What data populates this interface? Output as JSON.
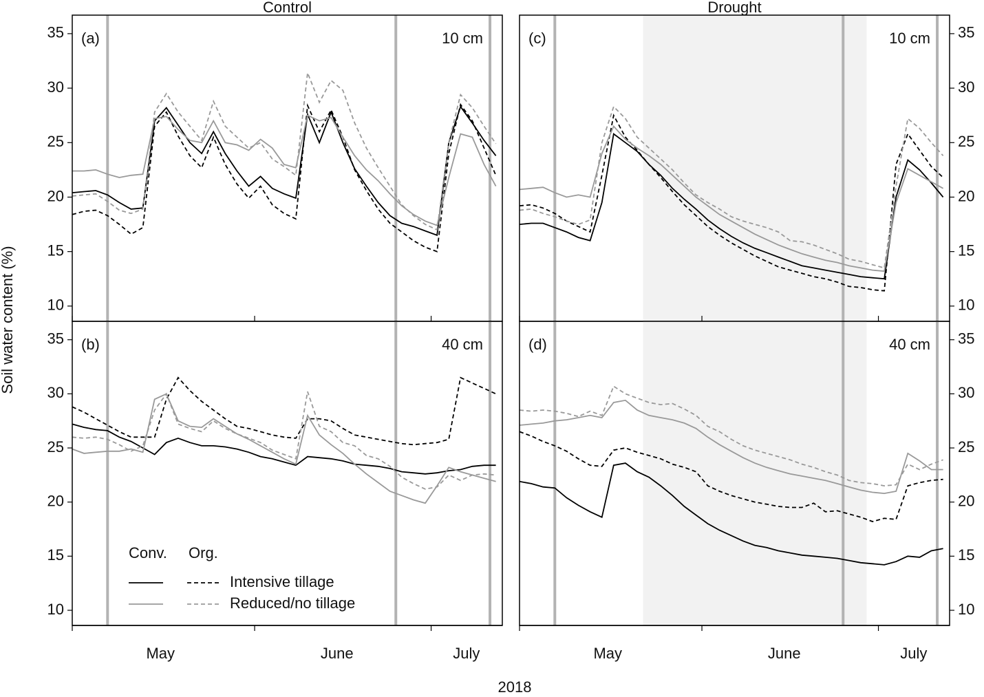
{
  "figure": {
    "y_label": "Soil water content (%)",
    "x_label": "2018",
    "legend": {
      "corner": "bottom-left",
      "headers": [
        "Conv.",
        "Org."
      ],
      "rows": [
        "Intensive tillage",
        "Reduced/no tillage"
      ],
      "colors": [
        "#000000",
        "#999999"
      ]
    }
  },
  "chart_data": [
    {
      "type": "line",
      "title": "Control",
      "label": "(a)",
      "depth": "10 cm",
      "y_axis_side": "left",
      "xlim": [
        0,
        73.1
      ],
      "ylim": [
        8.6,
        36.7
      ],
      "yticks": [
        10,
        15,
        20,
        25,
        30,
        35
      ],
      "events": [
        6,
        55,
        71
      ],
      "x": [
        0,
        2,
        4,
        6,
        8,
        10,
        12,
        14,
        16,
        18,
        20,
        22,
        24,
        26,
        28,
        30,
        32,
        34,
        36,
        38,
        40,
        42,
        44,
        46,
        48,
        50,
        52,
        54,
        56,
        58,
        60,
        62,
        64,
        66,
        68,
        70,
        72
      ],
      "series": [
        {
          "color": "#000000",
          "dashed": false,
          "values": [
            20.4,
            20.5,
            20.6,
            20.2,
            19.5,
            18.9,
            19.0,
            27.0,
            28.2,
            26.6,
            25.0,
            24.0,
            26.0,
            24.0,
            22.4,
            21.0,
            21.9,
            20.8,
            20.3,
            19.9,
            27.6,
            25.0,
            27.8,
            25.0,
            22.6,
            21.0,
            19.5,
            18.3,
            17.6,
            17.3,
            16.9,
            16.5,
            25.0,
            28.3,
            26.8,
            25.2,
            23.8
          ]
        },
        {
          "color": "#000000",
          "dashed": true,
          "values": [
            18.4,
            18.7,
            18.8,
            18.3,
            17.5,
            16.6,
            17.2,
            26.5,
            27.8,
            25.6,
            23.8,
            22.7,
            25.5,
            23.0,
            21.2,
            19.9,
            21.0,
            19.3,
            18.5,
            18.0,
            28.4,
            26.0,
            28.0,
            25.5,
            22.5,
            20.6,
            18.9,
            17.6,
            16.8,
            16.0,
            15.4,
            15.0,
            24.0,
            28.5,
            27.0,
            24.5,
            22.0
          ]
        },
        {
          "color": "#999999",
          "dashed": false,
          "values": [
            22.4,
            22.4,
            22.5,
            22.1,
            21.8,
            22.0,
            22.1,
            27.2,
            27.4,
            26.2,
            25.2,
            25.0,
            27.0,
            25.0,
            24.8,
            24.3,
            25.3,
            24.5,
            23.0,
            22.7,
            27.5,
            27.0,
            27.3,
            25.5,
            23.8,
            22.5,
            21.5,
            20.3,
            19.2,
            18.4,
            17.8,
            17.4,
            21.8,
            25.8,
            25.5,
            23.0,
            21.0
          ]
        },
        {
          "color": "#999999",
          "dashed": true,
          "values": [
            20.1,
            20.2,
            20.3,
            19.6,
            18.8,
            18.5,
            18.9,
            27.8,
            29.5,
            27.8,
            26.5,
            25.2,
            28.8,
            26.5,
            25.5,
            24.5,
            25.0,
            23.5,
            22.8,
            22.0,
            31.4,
            28.7,
            30.7,
            29.8,
            26.8,
            24.5,
            22.7,
            21.0,
            19.3,
            18.3,
            17.5,
            17.0,
            25.0,
            29.4,
            28.2,
            26.5,
            24.9
          ]
        }
      ]
    },
    {
      "type": "line",
      "label": "(b)",
      "depth": "40 cm",
      "y_axis_side": "left",
      "legend": true,
      "xlim": [
        0,
        73.1
      ],
      "ylim": [
        8.6,
        36.7
      ],
      "yticks": [
        10,
        15,
        20,
        25,
        30,
        35
      ],
      "xticks": [
        0,
        31,
        61
      ],
      "events": [
        6,
        55,
        71
      ],
      "month_labels": [
        {
          "value": 15,
          "label": "May"
        },
        {
          "value": 45,
          "label": "June"
        },
        {
          "value": 67,
          "label": "July"
        }
      ],
      "x": [
        0,
        2,
        4,
        6,
        8,
        10,
        12,
        14,
        16,
        18,
        20,
        22,
        24,
        26,
        28,
        30,
        32,
        34,
        36,
        38,
        40,
        42,
        44,
        46,
        48,
        50,
        52,
        54,
        56,
        58,
        60,
        62,
        64,
        66,
        68,
        70,
        72
      ],
      "series": [
        {
          "color": "#000000",
          "dashed": false,
          "values": [
            27.2,
            26.9,
            26.7,
            26.6,
            26.0,
            25.6,
            25.0,
            24.4,
            25.5,
            25.9,
            25.5,
            25.2,
            25.2,
            25.1,
            24.9,
            24.6,
            24.2,
            24.0,
            23.7,
            23.4,
            24.2,
            24.1,
            24.0,
            23.8,
            23.5,
            23.4,
            23.3,
            23.1,
            22.8,
            22.7,
            22.6,
            22.7,
            22.9,
            23.0,
            23.3,
            23.4,
            23.4
          ]
        },
        {
          "color": "#000000",
          "dashed": true,
          "values": [
            28.8,
            28.3,
            27.7,
            27.1,
            26.5,
            26.0,
            26.0,
            26.0,
            29.5,
            31.5,
            30.3,
            29.3,
            28.5,
            27.7,
            27.0,
            26.8,
            26.5,
            26.2,
            26.0,
            25.9,
            27.7,
            27.7,
            27.5,
            26.8,
            26.2,
            26.0,
            25.8,
            25.6,
            25.4,
            25.3,
            25.4,
            25.5,
            25.8,
            31.5,
            31.0,
            30.5,
            30.0
          ]
        },
        {
          "color": "#999999",
          "dashed": false,
          "values": [
            24.9,
            24.5,
            24.6,
            24.7,
            24.7,
            24.9,
            24.6,
            29.5,
            30.0,
            27.5,
            27.0,
            26.9,
            27.7,
            27.0,
            26.3,
            25.8,
            25.2,
            24.6,
            24.0,
            23.5,
            28.0,
            26.2,
            25.3,
            24.5,
            23.5,
            22.6,
            21.8,
            21.0,
            20.6,
            20.2,
            19.9,
            21.5,
            23.2,
            22.8,
            22.5,
            22.2,
            21.9
          ]
        },
        {
          "color": "#999999",
          "dashed": true,
          "values": [
            26.0,
            25.9,
            26.0,
            25.8,
            25.3,
            24.7,
            25.2,
            28.5,
            30.0,
            27.2,
            26.8,
            26.5,
            27.5,
            26.8,
            26.3,
            25.9,
            25.5,
            24.8,
            24.4,
            24.0,
            30.2,
            27.0,
            26.5,
            25.5,
            25.2,
            24.3,
            24.0,
            23.3,
            22.3,
            21.7,
            21.2,
            21.4,
            22.5,
            22.0,
            22.5,
            22.6,
            22.5
          ]
        }
      ]
    },
    {
      "type": "line",
      "title": "Drought",
      "label": "(c)",
      "depth": "10 cm",
      "y_axis_side": "right",
      "xlim": [
        0,
        73.1
      ],
      "ylim": [
        8.6,
        36.7
      ],
      "yticks": [
        10,
        15,
        20,
        25,
        30,
        35
      ],
      "events": [
        6,
        55,
        71
      ],
      "shaded_span": [
        21,
        59
      ],
      "x": [
        0,
        2,
        4,
        6,
        8,
        10,
        12,
        14,
        16,
        18,
        20,
        22,
        24,
        26,
        28,
        30,
        32,
        34,
        36,
        38,
        40,
        42,
        44,
        46,
        48,
        50,
        52,
        54,
        56,
        58,
        60,
        62,
        64,
        66,
        68,
        70,
        72
      ],
      "series": [
        {
          "color": "#000000",
          "dashed": false,
          "values": [
            17.5,
            17.6,
            17.6,
            17.2,
            16.8,
            16.3,
            16.0,
            19.5,
            25.8,
            25.0,
            24.2,
            23.0,
            22.0,
            20.8,
            19.8,
            18.9,
            17.9,
            17.1,
            16.4,
            15.8,
            15.3,
            14.9,
            14.5,
            14.1,
            13.7,
            13.5,
            13.3,
            13.1,
            12.9,
            12.7,
            12.6,
            12.5,
            20.0,
            23.4,
            22.5,
            21.3,
            20.0
          ]
        },
        {
          "color": "#000000",
          "dashed": true,
          "values": [
            19.2,
            19.3,
            19.0,
            18.5,
            17.8,
            17.3,
            16.8,
            22.0,
            27.5,
            25.5,
            24.3,
            23.0,
            21.8,
            20.5,
            19.3,
            18.3,
            17.3,
            16.5,
            15.8,
            15.2,
            14.6,
            14.1,
            13.6,
            13.3,
            13.0,
            12.7,
            12.5,
            12.2,
            11.8,
            11.7,
            11.5,
            11.4,
            23.0,
            25.8,
            24.3,
            22.8,
            21.8
          ]
        },
        {
          "color": "#999999",
          "dashed": false,
          "values": [
            20.7,
            20.8,
            20.9,
            20.4,
            20.0,
            20.2,
            20.0,
            24.0,
            26.5,
            25.3,
            24.5,
            23.8,
            23.0,
            22.0,
            21.0,
            20.0,
            19.2,
            18.4,
            17.8,
            17.2,
            16.6,
            16.1,
            15.6,
            15.2,
            14.8,
            14.5,
            14.2,
            14.0,
            13.7,
            13.5,
            13.3,
            13.2,
            19.5,
            22.6,
            22.0,
            21.4,
            20.8
          ]
        },
        {
          "color": "#999999",
          "dashed": true,
          "values": [
            18.8,
            18.9,
            18.5,
            18.2,
            17.8,
            17.5,
            17.9,
            25.0,
            28.3,
            27.2,
            25.5,
            24.5,
            23.5,
            22.5,
            21.3,
            20.2,
            19.5,
            18.9,
            18.2,
            17.8,
            17.5,
            17.2,
            16.8,
            16.0,
            15.9,
            15.6,
            15.2,
            14.8,
            14.3,
            14.1,
            13.8,
            13.5,
            21.0,
            27.2,
            26.3,
            25.0,
            23.8
          ]
        }
      ]
    },
    {
      "type": "line",
      "label": "(d)",
      "depth": "40 cm",
      "y_axis_side": "right",
      "xlim": [
        0,
        73.1
      ],
      "ylim": [
        8.6,
        36.7
      ],
      "yticks": [
        10,
        15,
        20,
        25,
        30,
        35
      ],
      "xticks": [
        0,
        31,
        61
      ],
      "events": [
        6,
        55,
        71
      ],
      "shaded_span": [
        21,
        59
      ],
      "month_labels": [
        {
          "value": 15,
          "label": "May"
        },
        {
          "value": 45,
          "label": "June"
        },
        {
          "value": 67,
          "label": "July"
        }
      ],
      "x": [
        0,
        2,
        4,
        6,
        8,
        10,
        12,
        14,
        16,
        18,
        20,
        22,
        24,
        26,
        28,
        30,
        32,
        34,
        36,
        38,
        40,
        42,
        44,
        46,
        48,
        50,
        52,
        54,
        56,
        58,
        60,
        62,
        64,
        66,
        68,
        70,
        72
      ],
      "series": [
        {
          "color": "#000000",
          "dashed": false,
          "values": [
            21.9,
            21.7,
            21.4,
            21.3,
            20.4,
            19.7,
            19.1,
            18.6,
            23.4,
            23.6,
            22.8,
            22.3,
            21.5,
            20.6,
            19.6,
            18.8,
            18.0,
            17.4,
            16.9,
            16.4,
            16.0,
            15.8,
            15.5,
            15.3,
            15.1,
            15.0,
            14.9,
            14.8,
            14.6,
            14.4,
            14.3,
            14.2,
            14.5,
            15.0,
            14.9,
            15.5,
            15.7
          ]
        },
        {
          "color": "#000000",
          "dashed": true,
          "values": [
            26.5,
            26.1,
            25.6,
            25.2,
            24.7,
            24.0,
            23.4,
            23.3,
            24.8,
            25.0,
            24.6,
            24.3,
            24.0,
            23.5,
            23.2,
            22.8,
            21.5,
            21.0,
            20.6,
            20.3,
            20.0,
            19.8,
            19.6,
            19.5,
            19.5,
            19.9,
            19.1,
            19.2,
            18.9,
            18.6,
            18.2,
            18.5,
            18.4,
            21.5,
            21.8,
            22.0,
            22.1
          ]
        },
        {
          "color": "#999999",
          "dashed": false,
          "values": [
            27.1,
            27.2,
            27.3,
            27.5,
            27.6,
            27.8,
            28.0,
            27.8,
            29.2,
            29.4,
            28.5,
            28.0,
            27.8,
            27.6,
            27.3,
            26.8,
            26.0,
            25.3,
            24.7,
            24.1,
            23.6,
            23.2,
            22.9,
            22.6,
            22.4,
            22.2,
            22.0,
            21.7,
            21.4,
            21.1,
            20.9,
            20.8,
            21.0,
            24.5,
            23.8,
            23.0,
            23.0
          ]
        },
        {
          "color": "#999999",
          "dashed": true,
          "values": [
            28.5,
            28.4,
            28.5,
            28.4,
            28.2,
            27.9,
            28.4,
            28.0,
            30.7,
            30.0,
            29.6,
            29.2,
            29.0,
            29.1,
            28.6,
            28.0,
            27.0,
            26.5,
            25.8,
            25.2,
            24.8,
            24.5,
            24.2,
            23.9,
            23.5,
            23.2,
            22.8,
            22.5,
            22.0,
            21.8,
            21.7,
            21.5,
            21.6,
            23.5,
            23.0,
            23.5,
            23.9
          ]
        }
      ]
    }
  ]
}
